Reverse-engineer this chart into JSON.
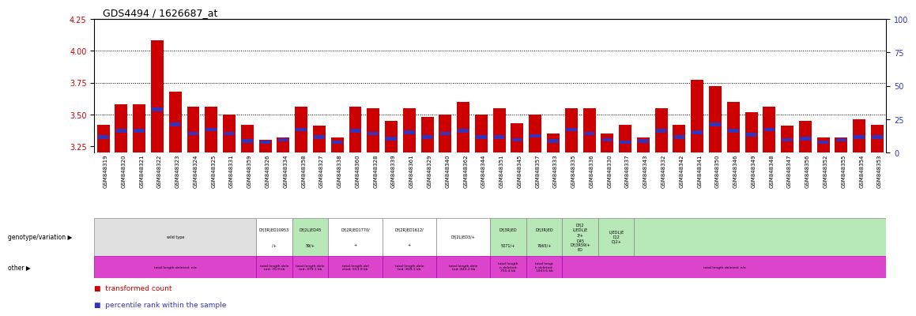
{
  "title": "GDS4494 / 1626687_at",
  "samples": [
    "GSM848319",
    "GSM848320",
    "GSM848321",
    "GSM848322",
    "GSM848323",
    "GSM848324",
    "GSM848325",
    "GSM848331",
    "GSM848359",
    "GSM848326",
    "GSM848334",
    "GSM848358",
    "GSM848327",
    "GSM848338",
    "GSM848360",
    "GSM848328",
    "GSM848339",
    "GSM848361",
    "GSM848329",
    "GSM848340",
    "GSM848362",
    "GSM848344",
    "GSM848351",
    "GSM848345",
    "GSM848357",
    "GSM848333",
    "GSM848335",
    "GSM848336",
    "GSM848330",
    "GSM848337",
    "GSM848343",
    "GSM848332",
    "GSM848342",
    "GSM848341",
    "GSM848350",
    "GSM848346",
    "GSM848349",
    "GSM848348",
    "GSM848347",
    "GSM848356",
    "GSM848352",
    "GSM848355",
    "GSM848354",
    "GSM848353"
  ],
  "red_values": [
    3.42,
    3.58,
    3.58,
    4.08,
    3.68,
    3.56,
    3.56,
    3.5,
    3.42,
    3.3,
    3.32,
    3.56,
    3.41,
    3.32,
    3.56,
    3.55,
    3.45,
    3.55,
    3.48,
    3.5,
    3.6,
    3.5,
    3.55,
    3.43,
    3.5,
    3.35,
    3.55,
    3.55,
    3.35,
    3.42,
    3.32,
    3.55,
    3.42,
    3.77,
    3.72,
    3.6,
    3.52,
    3.56,
    3.41,
    3.45,
    3.32,
    3.32,
    3.46,
    3.42
  ],
  "blue_values": [
    3.32,
    3.37,
    3.37,
    3.54,
    3.42,
    3.35,
    3.38,
    3.35,
    3.29,
    3.28,
    3.3,
    3.38,
    3.32,
    3.28,
    3.37,
    3.35,
    3.31,
    3.36,
    3.32,
    3.35,
    3.37,
    3.32,
    3.32,
    3.3,
    3.33,
    3.29,
    3.38,
    3.35,
    3.3,
    3.28,
    3.29,
    3.37,
    3.32,
    3.36,
    3.42,
    3.37,
    3.34,
    3.38,
    3.3,
    3.31,
    3.28,
    3.3,
    3.32,
    3.32
  ],
  "ylim_left": [
    3.2,
    4.25
  ],
  "yticks_left": [
    3.25,
    3.5,
    3.75,
    4.0,
    4.25
  ],
  "yticks_right": [
    0,
    25,
    50,
    75,
    100
  ],
  "hlines": [
    3.5,
    3.75,
    4.0
  ],
  "bar_width": 0.7,
  "red_color": "#CC0000",
  "blue_color": "#3333BB",
  "chart_bg": "#ffffff",
  "sample_area_bg": "#d8d8d8",
  "title_fontsize": 9,
  "genotype_groups": [
    {
      "start": 0,
      "end": 8,
      "bg": "#e0e0e0",
      "label": "wild type",
      "sub": ""
    },
    {
      "start": 9,
      "end": 10,
      "bg": "#ffffff",
      "label": "Df(3R)ED10953",
      "sub": "/+"
    },
    {
      "start": 11,
      "end": 12,
      "bg": "#b8e8b8",
      "label": "Df(2L)ED45",
      "sub": "59/+"
    },
    {
      "start": 13,
      "end": 15,
      "bg": "#ffffff",
      "label": "Df(2R)ED1770/",
      "sub": "+"
    },
    {
      "start": 16,
      "end": 18,
      "bg": "#ffffff",
      "label": "Df(2R)ED1612/",
      "sub": "+"
    },
    {
      "start": 19,
      "end": 21,
      "bg": "#ffffff",
      "label": "Df(2L)ED3/+",
      "sub": ""
    },
    {
      "start": 22,
      "end": 23,
      "bg": "#b8e8b8",
      "label": "Df(3R)ED",
      "sub": "5071/+"
    },
    {
      "start": 24,
      "end": 25,
      "bg": "#b8e8b8",
      "label": "Df(3R)ED",
      "sub": "7665/+"
    },
    {
      "start": 26,
      "end": 27,
      "bg": "#b8e8b8",
      "label": "Df(2\nL)EDL)E\n3/+",
      "sub": "D45\nDf(3R59/+\nED"
    },
    {
      "start": 28,
      "end": 29,
      "bg": "#b8e8b8",
      "label": "L)EDL)E\nD(2\nD)2+",
      "sub": ""
    },
    {
      "start": 30,
      "end": 43,
      "bg": "#b8e8b8",
      "label": "",
      "sub": ""
    }
  ],
  "other_groups": [
    {
      "start": 0,
      "end": 8,
      "bg": "#dd44cc",
      "label": "total length deleted: n/a"
    },
    {
      "start": 9,
      "end": 10,
      "bg": "#dd44cc",
      "label": "total length dele\nted: 70.9 kb"
    },
    {
      "start": 11,
      "end": 12,
      "bg": "#dd44cc",
      "label": "total length dele\nted: 479.1 kb"
    },
    {
      "start": 13,
      "end": 15,
      "bg": "#dd44cc",
      "label": "total length del\neted: 551.9 kb"
    },
    {
      "start": 16,
      "end": 18,
      "bg": "#dd44cc",
      "label": "total length dele\nted: 829.1 kb"
    },
    {
      "start": 19,
      "end": 21,
      "bg": "#dd44cc",
      "label": "total length dele\nted: 843.2 kb"
    },
    {
      "start": 22,
      "end": 23,
      "bg": "#dd44cc",
      "label": "total length\nn deleted:\n755.4 kb"
    },
    {
      "start": 24,
      "end": 25,
      "bg": "#dd44cc",
      "label": "total lengt\nh deleted:\n1003.6 kb"
    },
    {
      "start": 26,
      "end": 43,
      "bg": "#dd44cc",
      "label": "total length deleted: n/a"
    }
  ],
  "legend_red": "transformed count",
  "legend_blue": "percentile rank within the sample"
}
